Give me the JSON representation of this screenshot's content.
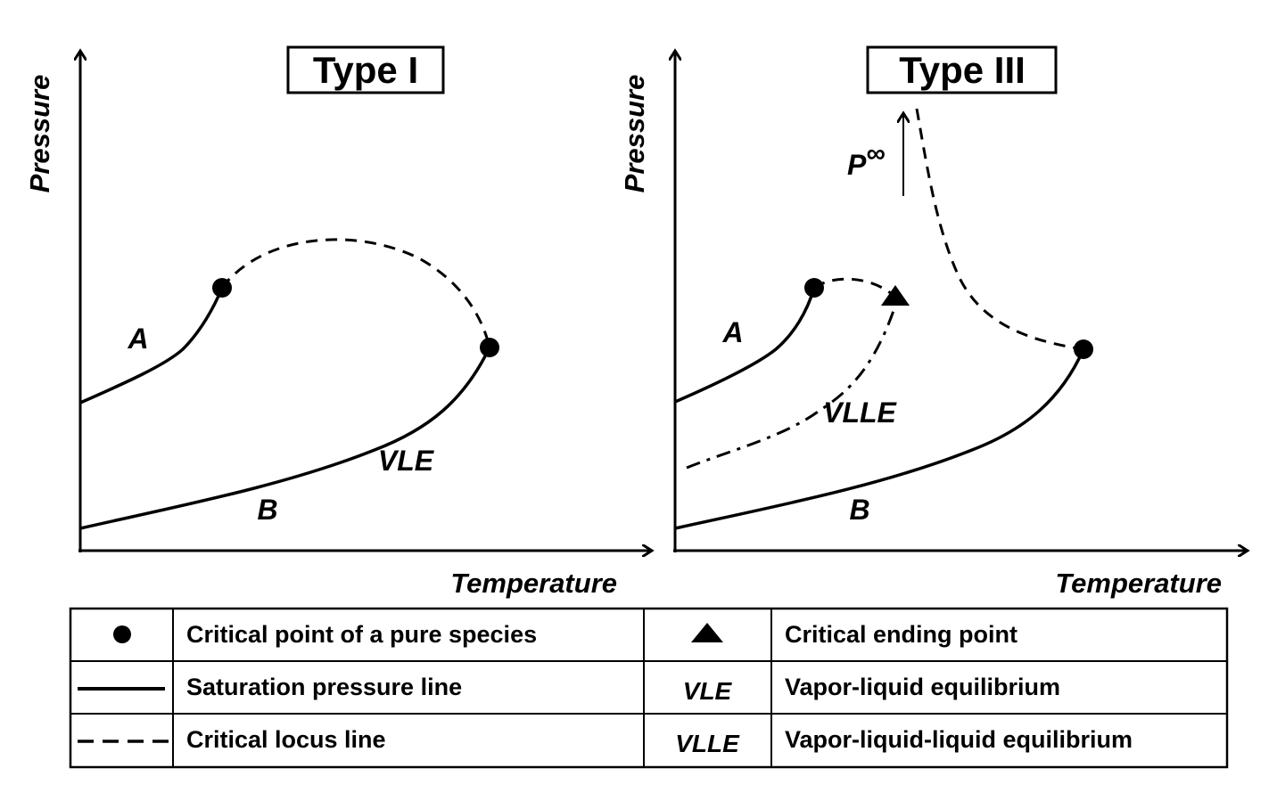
{
  "panels": [
    {
      "title": "Type I",
      "y_axis_label": "Pressure",
      "x_axis_label": "Temperature",
      "labels": {
        "a": "A",
        "b": "B",
        "region": "VLE"
      }
    },
    {
      "title": "Type III",
      "y_axis_label": "Pressure",
      "x_axis_label": "Temperature",
      "labels": {
        "a": "A",
        "b": "B",
        "region": "VLLE",
        "p_inf_base": "P",
        "p_inf_sup": "∞"
      }
    }
  ],
  "legend": [
    {
      "symbol": "circle-marker",
      "text": "Critical point of a pure species",
      "symbol2": "triangle-marker",
      "text2": "Critical ending point"
    },
    {
      "symbol": "solid-line",
      "text": "Saturation pressure line",
      "symbol2_text": "VLE",
      "text2": "Vapor-liquid equilibrium"
    },
    {
      "symbol": "dashed-line",
      "text": "Critical locus line",
      "symbol2_text": "VLLE",
      "text2": "Vapor-liquid-liquid equilibrium"
    }
  ]
}
